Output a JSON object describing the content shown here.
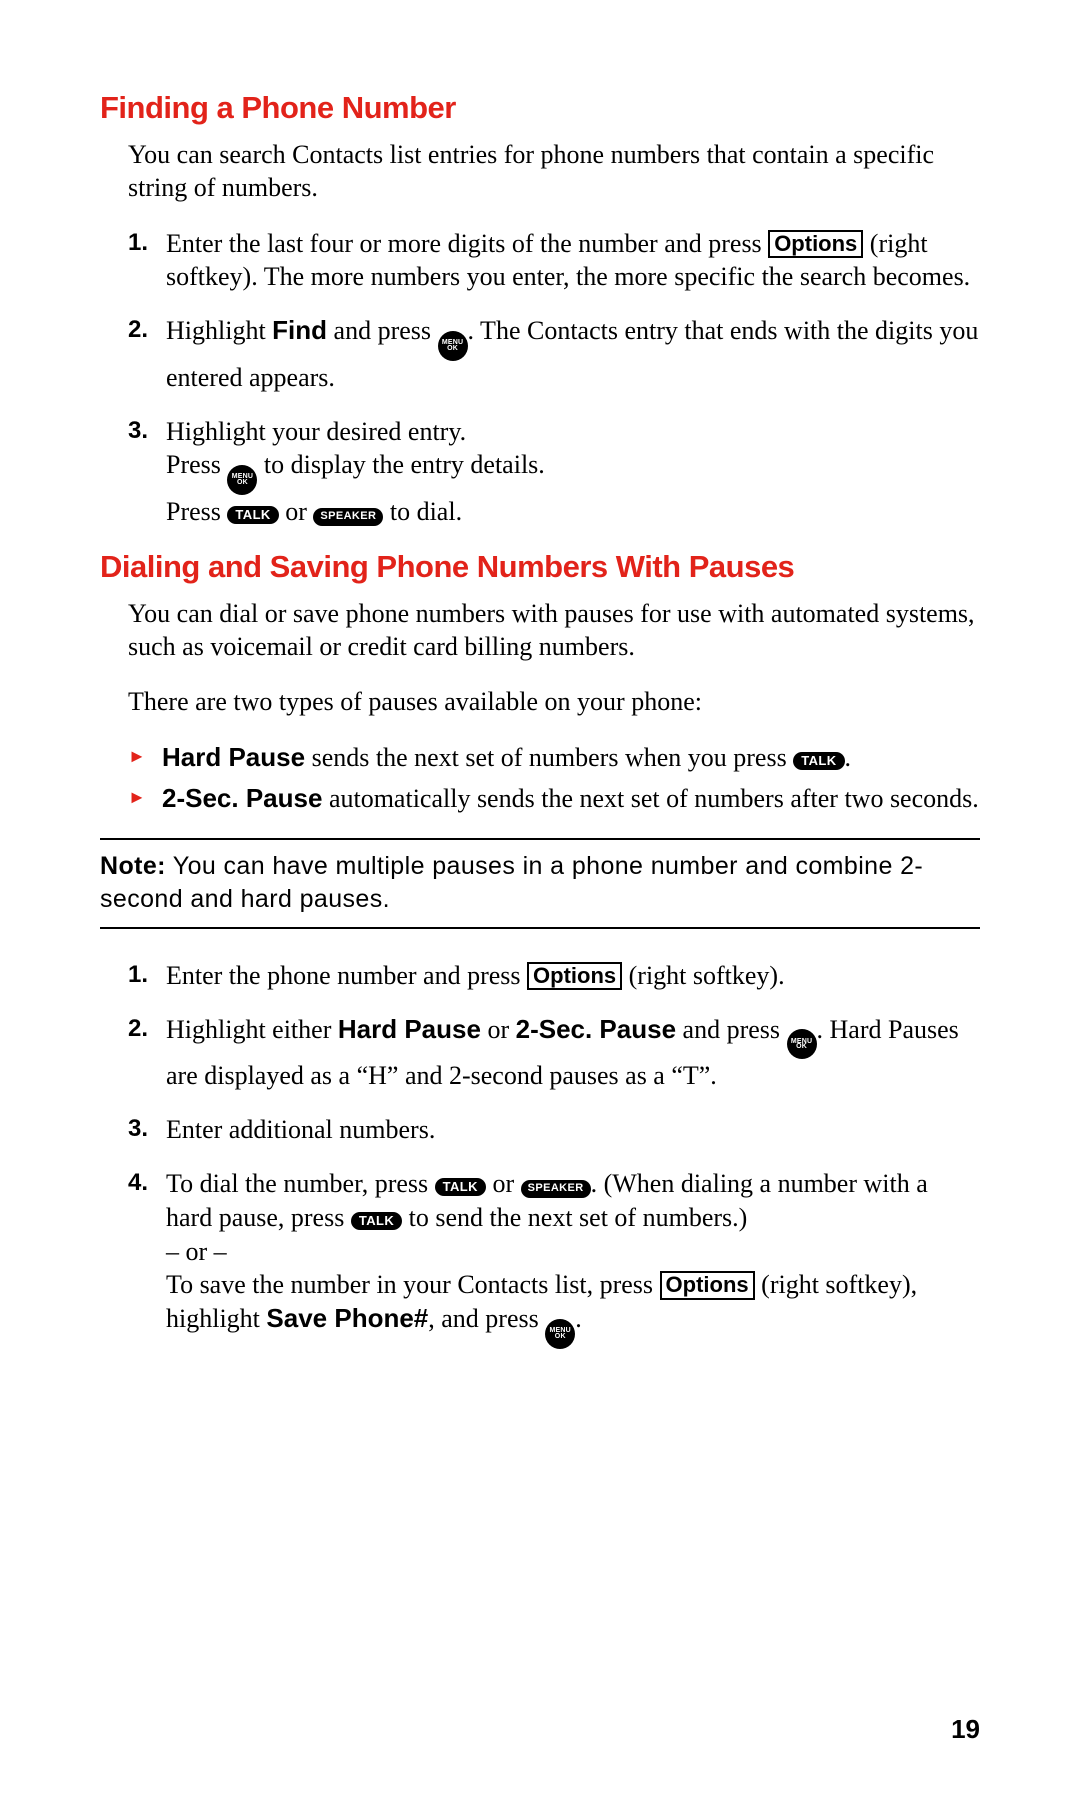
{
  "colors": {
    "accent": "#e2231a",
    "text": "#000000",
    "background": "#ffffff"
  },
  "buttons": {
    "options": "Options",
    "menu_top": "MENU",
    "menu_bottom": "OK",
    "talk": "TALK",
    "speaker": "SPEAKER"
  },
  "section1": {
    "title": "Finding a Phone Number",
    "intro": "You can search Contacts list entries for phone numbers that contain a specific string of numbers.",
    "step1_a": "Enter the last four or more digits of the number and press ",
    "step1_b": " (right softkey). The more numbers you enter, the more specific the search becomes.",
    "step2_a": "Highlight ",
    "step2_find": "Find",
    "step2_b": " and press ",
    "step2_c": ". The Contacts entry that ends with the digits you entered appears.",
    "step3_a": "Highlight your desired entry.",
    "step3_b1": "Press ",
    "step3_b2": " to display the entry details.",
    "step3_c1": "Press ",
    "step3_c_or": " or ",
    "step3_c2": " to dial."
  },
  "section2": {
    "title": "Dialing and Saving Phone Numbers With Pauses",
    "intro1": "You can dial or save phone numbers with pauses for use with automated systems, such as voicemail or credit card billing numbers.",
    "intro2": "There are two types of pauses available on your phone:",
    "bullet1_label": "Hard Pause",
    "bullet1_text": " sends the next set of numbers when you press ",
    "bullet1_end": ".",
    "bullet2_label": "2-Sec. Pause",
    "bullet2_text": " automatically sends the next set of numbers after two seconds.",
    "note_label": "Note:",
    "note_text": " You can have multiple pauses in a phone number and combine 2-second and hard pauses.",
    "step1_a": "Enter the phone number and press ",
    "step1_b": " (right softkey).",
    "step2_a": "Highlight either ",
    "step2_hp": "Hard Pause",
    "step2_or": " or ",
    "step2_sp": "2-Sec. Pause",
    "step2_b": " and press ",
    "step2_c": ". Hard Pauses are displayed as a “H” and 2-second pauses as a “T”.",
    "step3": "Enter additional numbers.",
    "step4_a": "To dial the number, press ",
    "step4_or": " or ",
    "step4_b": ". (When dialing a number with a hard pause, press ",
    "step4_c": " to send the next set of numbers.)",
    "step4_d": "– or –",
    "step4_e": "To save the number in your Contacts list, press ",
    "step4_f": " (right softkey), highlight ",
    "step4_save": "Save Phone#",
    "step4_g": ", and press ",
    "step4_h": "."
  },
  "page_number": "19"
}
